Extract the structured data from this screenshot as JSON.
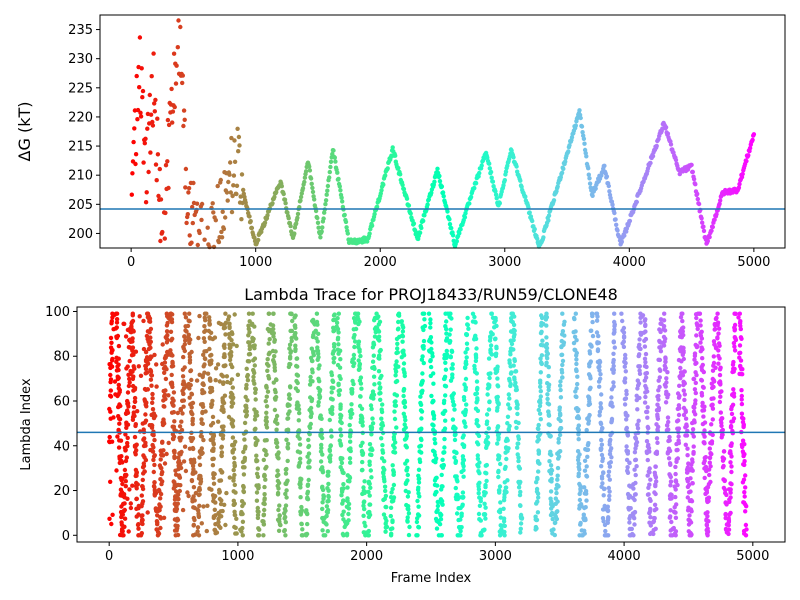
{
  "chart_data": [
    {
      "type": "scatter",
      "title": "",
      "xlabel": "",
      "ylabel": "ΔG (kT)",
      "xlim": [
        -250,
        5250
      ],
      "ylim": [
        197.5,
        237.5
      ],
      "xticks": [
        0,
        1000,
        2000,
        3000,
        4000,
        5000
      ],
      "yticks": [
        200,
        205,
        210,
        215,
        220,
        225,
        230,
        235
      ],
      "hline": 204.2,
      "hline_color": "#1f77b4",
      "colormap": "rainbow",
      "grid": false,
      "frames": [
        0,
        5000
      ],
      "trace_keypoints": [
        [
          0,
          200
        ],
        [
          60,
          230
        ],
        [
          120,
          210
        ],
        [
          180,
          225
        ],
        [
          250,
          200
        ],
        [
          380,
          236
        ],
        [
          450,
          205
        ],
        [
          600,
          198
        ],
        [
          850,
          212
        ],
        [
          1000,
          198
        ],
        [
          1200,
          209
        ],
        [
          1300,
          199
        ],
        [
          1420,
          212.5
        ],
        [
          1520,
          199
        ],
        [
          1620,
          214.5
        ],
        [
          1750,
          198.5
        ],
        [
          1900,
          199
        ],
        [
          2100,
          214.5
        ],
        [
          2300,
          199
        ],
        [
          2460,
          211
        ],
        [
          2600,
          198
        ],
        [
          2850,
          214
        ],
        [
          2950,
          204.5
        ],
        [
          3050,
          214.5
        ],
        [
          3280,
          197.5
        ],
        [
          3600,
          221
        ],
        [
          3700,
          206.5
        ],
        [
          3800,
          211.5
        ],
        [
          3930,
          198
        ],
        [
          4280,
          219
        ],
        [
          4400,
          210.5
        ],
        [
          4500,
          211.5
        ],
        [
          4620,
          198
        ],
        [
          4750,
          207
        ],
        [
          4870,
          207.5
        ],
        [
          5000,
          217
        ]
      ]
    },
    {
      "type": "scatter",
      "title": "Lambda Trace for PROJ18433/RUN59/CLONE48",
      "xlabel": "Frame Index",
      "ylabel": "Lambda Index",
      "xlim": [
        -250,
        5250
      ],
      "ylim": [
        -3,
        102
      ],
      "xticks": [
        0,
        1000,
        2000,
        3000,
        4000,
        5000
      ],
      "yticks": [
        0,
        20,
        40,
        60,
        80,
        100
      ],
      "hline": 46,
      "hline_color": "#1f77b4",
      "colormap": "rainbow",
      "grid": false,
      "frames": [
        0,
        5000
      ],
      "lambda_range": [
        0,
        99
      ],
      "sweep_centers": [
        0,
        80,
        140,
        200,
        280,
        340,
        420,
        500,
        560,
        640,
        720,
        800,
        880,
        960,
        1060,
        1140,
        1220,
        1300,
        1390,
        1470,
        1560,
        1640,
        1720,
        1800,
        1880,
        1960,
        2040,
        2120,
        2220,
        2300,
        2420,
        2520,
        2600,
        2680,
        2760,
        2860,
        2940,
        3020,
        3100,
        3170,
        3340,
        3420,
        3500,
        3640,
        3720,
        3820,
        3900,
        4020,
        4100,
        4180,
        4260,
        4340,
        4420,
        4480,
        4540,
        4620,
        4680,
        4760,
        4840,
        4920
      ]
    }
  ]
}
